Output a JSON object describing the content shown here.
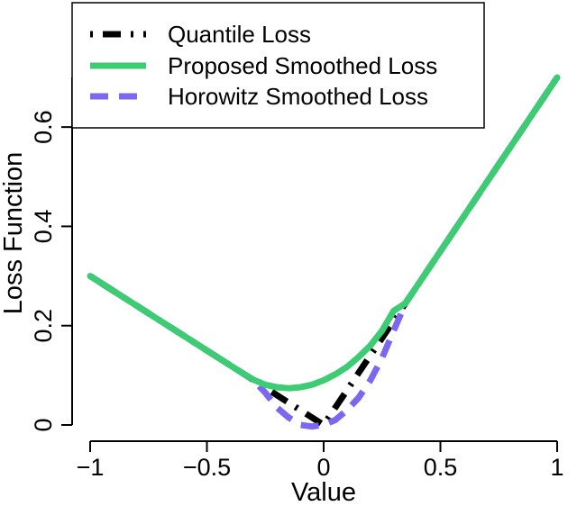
{
  "chart_data": {
    "type": "line",
    "xlabel": "Value",
    "ylabel": "Loss Function",
    "xlim": [
      -1,
      1
    ],
    "ylim": [
      0,
      0.7
    ],
    "x_ticks": [
      -1,
      -0.5,
      0,
      0.5,
      1
    ],
    "x_tick_labels": [
      "−1",
      "−0.5",
      "0",
      "0.5",
      "1"
    ],
    "y_ticks": [
      0,
      0.2,
      0.4,
      0.6
    ],
    "y_tick_labels": [
      "0",
      "0.2",
      "0.4",
      "0.6"
    ],
    "grid": false,
    "legend_position": "top-left",
    "series": [
      {
        "name": "Quantile Loss",
        "color": "#000000",
        "style": "dotdash",
        "x": [
          -1,
          -0.5,
          -0.25,
          -0.15,
          -0.1,
          -0.05,
          0,
          0.05,
          0.1,
          0.15,
          0.2,
          0.3,
          0.5,
          1
        ],
        "y": [
          0.3,
          0.15,
          0.075,
          0.045,
          0.03,
          0.015,
          0.0,
          0.035,
          0.07,
          0.105,
          0.14,
          0.21,
          0.35,
          0.7
        ]
      },
      {
        "name": "Proposed Smoothed Loss",
        "color": "#3dcc73",
        "style": "solid",
        "x": [
          -1,
          -0.5,
          -0.35,
          -0.3,
          -0.25,
          -0.2,
          -0.15,
          -0.1,
          -0.05,
          0,
          0.05,
          0.1,
          0.15,
          0.2,
          0.25,
          0.3,
          0.35,
          0.5,
          1
        ],
        "y": [
          0.3,
          0.15,
          0.105,
          0.091,
          0.081,
          0.076,
          0.074,
          0.076,
          0.081,
          0.09,
          0.102,
          0.117,
          0.137,
          0.16,
          0.19,
          0.23,
          0.245,
          0.35,
          0.7
        ]
      },
      {
        "name": "Horowitz Smoothed Loss",
        "color": "#7b68ee",
        "style": "dashed",
        "x": [
          -1,
          -0.5,
          -0.35,
          -0.3,
          -0.25,
          -0.2,
          -0.15,
          -0.1,
          -0.05,
          0,
          0.05,
          0.1,
          0.15,
          0.2,
          0.25,
          0.3,
          0.35,
          0.5,
          1
        ],
        "y": [
          0.3,
          0.15,
          0.105,
          0.09,
          0.065,
          0.035,
          0.015,
          0.0,
          -0.003,
          0.0,
          0.01,
          0.03,
          0.055,
          0.09,
          0.135,
          0.19,
          0.245,
          0.35,
          0.7
        ]
      }
    ]
  }
}
